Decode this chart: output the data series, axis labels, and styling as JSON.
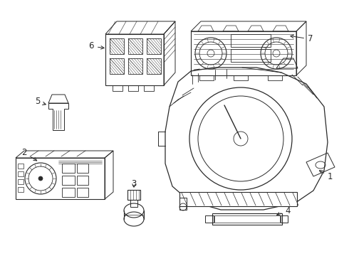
{
  "background_color": "#ffffff",
  "line_color": "#2a2a2a",
  "line_width": 0.7,
  "label_fontsize": 8.5,
  "figsize": [
    4.9,
    3.6
  ],
  "dpi": 100
}
